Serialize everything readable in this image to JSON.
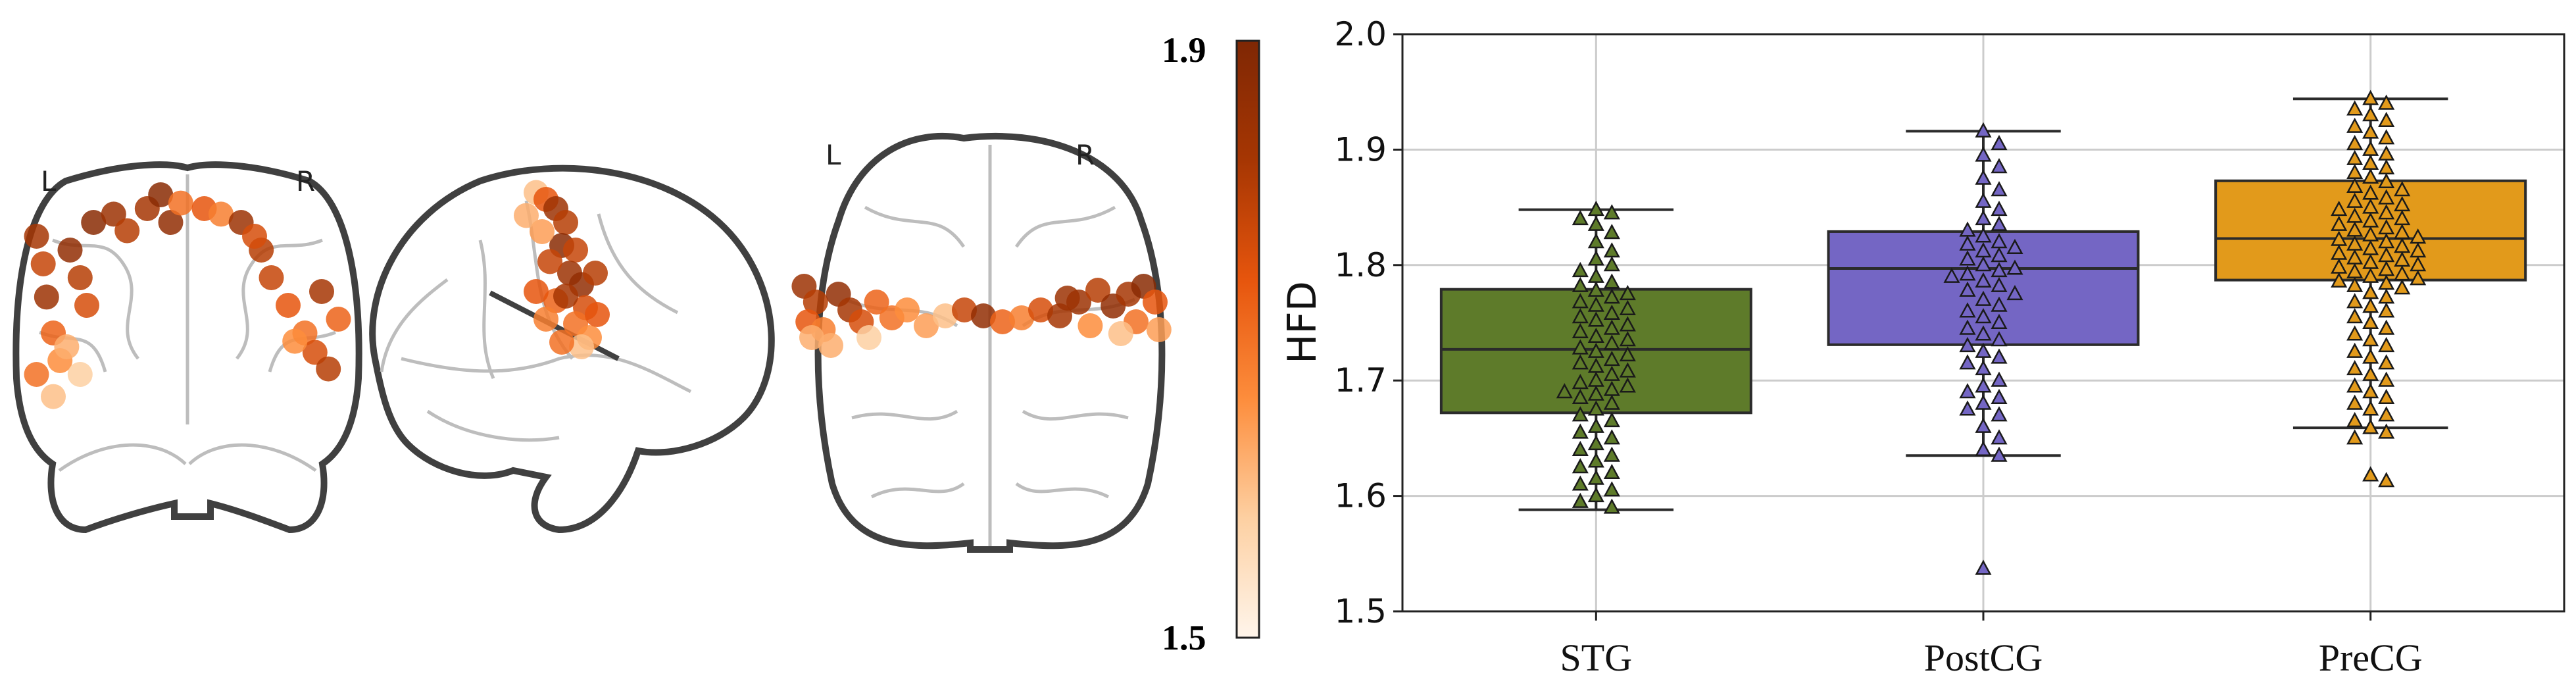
{
  "brain_panel": {
    "coronal_view": {
      "left_label": "L",
      "right_label": "R"
    },
    "axial_view": {
      "left_label": "L",
      "right_label": "R"
    },
    "colorbar": {
      "min_label": "1.5",
      "max_label": "1.9",
      "min": 1.5,
      "max": 1.9,
      "colors": [
        "#fff5eb",
        "#fdd0a2",
        "#fd8d3c",
        "#e6550d",
        "#a63603",
        "#7f2704"
      ]
    },
    "electrodes": {
      "coronal": [
        [
          0.05,
          0.2,
          1.82
        ],
        [
          0.07,
          0.3,
          1.78
        ],
        [
          0.08,
          0.42,
          1.84
        ],
        [
          0.1,
          0.55,
          1.72
        ],
        [
          0.12,
          0.65,
          1.66
        ],
        [
          0.05,
          0.7,
          1.7
        ],
        [
          0.1,
          0.78,
          1.6
        ],
        [
          0.15,
          0.25,
          1.86
        ],
        [
          0.18,
          0.35,
          1.8
        ],
        [
          0.2,
          0.45,
          1.76
        ],
        [
          0.22,
          0.15,
          1.88
        ],
        [
          0.28,
          0.12,
          1.84
        ],
        [
          0.32,
          0.18,
          1.8
        ],
        [
          0.38,
          0.1,
          1.82
        ],
        [
          0.42,
          0.05,
          1.88
        ],
        [
          0.45,
          0.15,
          1.86
        ],
        [
          0.48,
          0.08,
          1.7
        ],
        [
          0.55,
          0.1,
          1.74
        ],
        [
          0.6,
          0.12,
          1.68
        ],
        [
          0.66,
          0.15,
          1.84
        ],
        [
          0.72,
          0.25,
          1.8
        ],
        [
          0.75,
          0.35,
          1.78
        ],
        [
          0.8,
          0.45,
          1.74
        ],
        [
          0.85,
          0.55,
          1.7
        ],
        [
          0.88,
          0.62,
          1.76
        ],
        [
          0.92,
          0.68,
          1.8
        ],
        [
          0.95,
          0.5,
          1.72
        ],
        [
          0.9,
          0.4,
          1.82
        ],
        [
          0.82,
          0.58,
          1.66
        ],
        [
          0.7,
          0.2,
          1.76
        ],
        [
          0.14,
          0.6,
          1.62
        ],
        [
          0.18,
          0.7,
          1.58
        ]
      ],
      "sagittal": [
        [
          0.35,
          0.05,
          1.6
        ],
        [
          0.4,
          0.08,
          1.74
        ],
        [
          0.45,
          0.12,
          1.84
        ],
        [
          0.5,
          0.18,
          1.8
        ],
        [
          0.48,
          0.28,
          1.88
        ],
        [
          0.55,
          0.3,
          1.78
        ],
        [
          0.52,
          0.4,
          1.84
        ],
        [
          0.58,
          0.45,
          1.86
        ],
        [
          0.6,
          0.55,
          1.76
        ],
        [
          0.55,
          0.62,
          1.7
        ],
        [
          0.62,
          0.68,
          1.66
        ],
        [
          0.45,
          0.52,
          1.72
        ],
        [
          0.4,
          0.6,
          1.68
        ],
        [
          0.35,
          0.48,
          1.74
        ],
        [
          0.5,
          0.5,
          1.82
        ],
        [
          0.65,
          0.4,
          1.8
        ],
        [
          0.42,
          0.35,
          1.78
        ],
        [
          0.38,
          0.22,
          1.64
        ],
        [
          0.3,
          0.15,
          1.62
        ],
        [
          0.58,
          0.72,
          1.6
        ],
        [
          0.48,
          0.7,
          1.7
        ],
        [
          0.66,
          0.58,
          1.74
        ]
      ],
      "axial": [
        [
          0.03,
          0.4,
          1.84
        ],
        [
          0.06,
          0.48,
          1.8
        ],
        [
          0.04,
          0.58,
          1.74
        ],
        [
          0.08,
          0.62,
          1.68
        ],
        [
          0.12,
          0.44,
          1.86
        ],
        [
          0.15,
          0.52,
          1.82
        ],
        [
          0.1,
          0.7,
          1.62
        ],
        [
          0.18,
          0.58,
          1.76
        ],
        [
          0.22,
          0.48,
          1.72
        ],
        [
          0.26,
          0.56,
          1.7
        ],
        [
          0.3,
          0.52,
          1.66
        ],
        [
          0.35,
          0.6,
          1.64
        ],
        [
          0.4,
          0.55,
          1.6
        ],
        [
          0.45,
          0.52,
          1.78
        ],
        [
          0.5,
          0.55,
          1.86
        ],
        [
          0.55,
          0.58,
          1.72
        ],
        [
          0.6,
          0.56,
          1.68
        ],
        [
          0.65,
          0.52,
          1.76
        ],
        [
          0.7,
          0.55,
          1.82
        ],
        [
          0.75,
          0.48,
          1.84
        ],
        [
          0.8,
          0.42,
          1.8
        ],
        [
          0.84,
          0.5,
          1.86
        ],
        [
          0.88,
          0.44,
          1.82
        ],
        [
          0.92,
          0.4,
          1.88
        ],
        [
          0.95,
          0.48,
          1.74
        ],
        [
          0.9,
          0.58,
          1.7
        ],
        [
          0.96,
          0.62,
          1.64
        ],
        [
          0.86,
          0.64,
          1.6
        ],
        [
          0.78,
          0.6,
          1.66
        ],
        [
          0.2,
          0.66,
          1.58
        ],
        [
          0.05,
          0.66,
          1.62
        ],
        [
          0.72,
          0.46,
          1.84
        ]
      ]
    }
  },
  "chart_data": {
    "type": "box",
    "title": "",
    "xlabel": "",
    "ylabel": "HFD",
    "ylim": [
      1.5,
      2.0
    ],
    "yticks": [
      1.5,
      1.6,
      1.7,
      1.8,
      1.9,
      2.0
    ],
    "ytick_labels": [
      "1.5",
      "1.6",
      "1.7",
      "1.8",
      "1.9",
      "2.0"
    ],
    "grid": true,
    "categories": [
      "STG",
      "PostCG",
      "PreCG"
    ],
    "boxes": [
      {
        "name": "STG",
        "color": "#5e7b2a",
        "q1": 1.672,
        "median": 1.727,
        "q3": 1.779,
        "whisker_low": 1.588,
        "whisker_high": 1.848,
        "outliers": []
      },
      {
        "name": "PostCG",
        "color": "#7466c4",
        "q1": 1.731,
        "median": 1.797,
        "q3": 1.829,
        "whisker_low": 1.635,
        "whisker_high": 1.916,
        "outliers": [
          1.537
        ]
      },
      {
        "name": "PreCG",
        "color": "#e29a1b",
        "q1": 1.787,
        "median": 1.823,
        "q3": 1.873,
        "whisker_low": 1.659,
        "whisker_high": 1.944,
        "outliers": [
          1.613,
          1.618
        ]
      }
    ],
    "points": [
      [
        1.848,
        1.845,
        1.84,
        1.835,
        1.828,
        1.82,
        1.812,
        1.805,
        1.8,
        1.795,
        1.79,
        1.785,
        1.782,
        1.778,
        1.775,
        1.772,
        1.768,
        1.765,
        1.762,
        1.758,
        1.755,
        1.752,
        1.748,
        1.745,
        1.742,
        1.738,
        1.735,
        1.732,
        1.728,
        1.725,
        1.722,
        1.718,
        1.715,
        1.712,
        1.708,
        1.705,
        1.7,
        1.698,
        1.695,
        1.692,
        1.69,
        1.688,
        1.685,
        1.68,
        1.675,
        1.67,
        1.665,
        1.66,
        1.655,
        1.65,
        1.645,
        1.64,
        1.635,
        1.63,
        1.625,
        1.62,
        1.615,
        1.61,
        1.605,
        1.6,
        1.595,
        1.59
      ],
      [
        1.916,
        1.905,
        1.895,
        1.885,
        1.875,
        1.865,
        1.855,
        1.848,
        1.84,
        1.835,
        1.83,
        1.825,
        1.82,
        1.818,
        1.815,
        1.812,
        1.808,
        1.805,
        1.8,
        1.797,
        1.795,
        1.792,
        1.79,
        1.786,
        1.782,
        1.778,
        1.775,
        1.77,
        1.765,
        1.76,
        1.755,
        1.75,
        1.745,
        1.74,
        1.735,
        1.73,
        1.725,
        1.72,
        1.715,
        1.71,
        1.7,
        1.695,
        1.69,
        1.685,
        1.68,
        1.675,
        1.67,
        1.66,
        1.65,
        1.64,
        1.635,
        1.537
      ],
      [
        1.944,
        1.94,
        1.935,
        1.93,
        1.925,
        1.92,
        1.915,
        1.91,
        1.905,
        1.9,
        1.896,
        1.892,
        1.888,
        1.884,
        1.88,
        1.876,
        1.872,
        1.868,
        1.865,
        1.862,
        1.858,
        1.855,
        1.852,
        1.85,
        1.848,
        1.845,
        1.842,
        1.84,
        1.838,
        1.835,
        1.832,
        1.83,
        1.828,
        1.826,
        1.824,
        1.822,
        1.82,
        1.818,
        1.816,
        1.814,
        1.812,
        1.81,
        1.808,
        1.806,
        1.804,
        1.802,
        1.8,
        1.798,
        1.796,
        1.794,
        1.792,
        1.79,
        1.788,
        1.786,
        1.784,
        1.782,
        1.78,
        1.776,
        1.772,
        1.768,
        1.764,
        1.76,
        1.755,
        1.75,
        1.745,
        1.74,
        1.735,
        1.73,
        1.725,
        1.72,
        1.715,
        1.71,
        1.705,
        1.7,
        1.695,
        1.69,
        1.685,
        1.68,
        1.675,
        1.67,
        1.665,
        1.659,
        1.655,
        1.65,
        1.618,
        1.613
      ]
    ]
  }
}
